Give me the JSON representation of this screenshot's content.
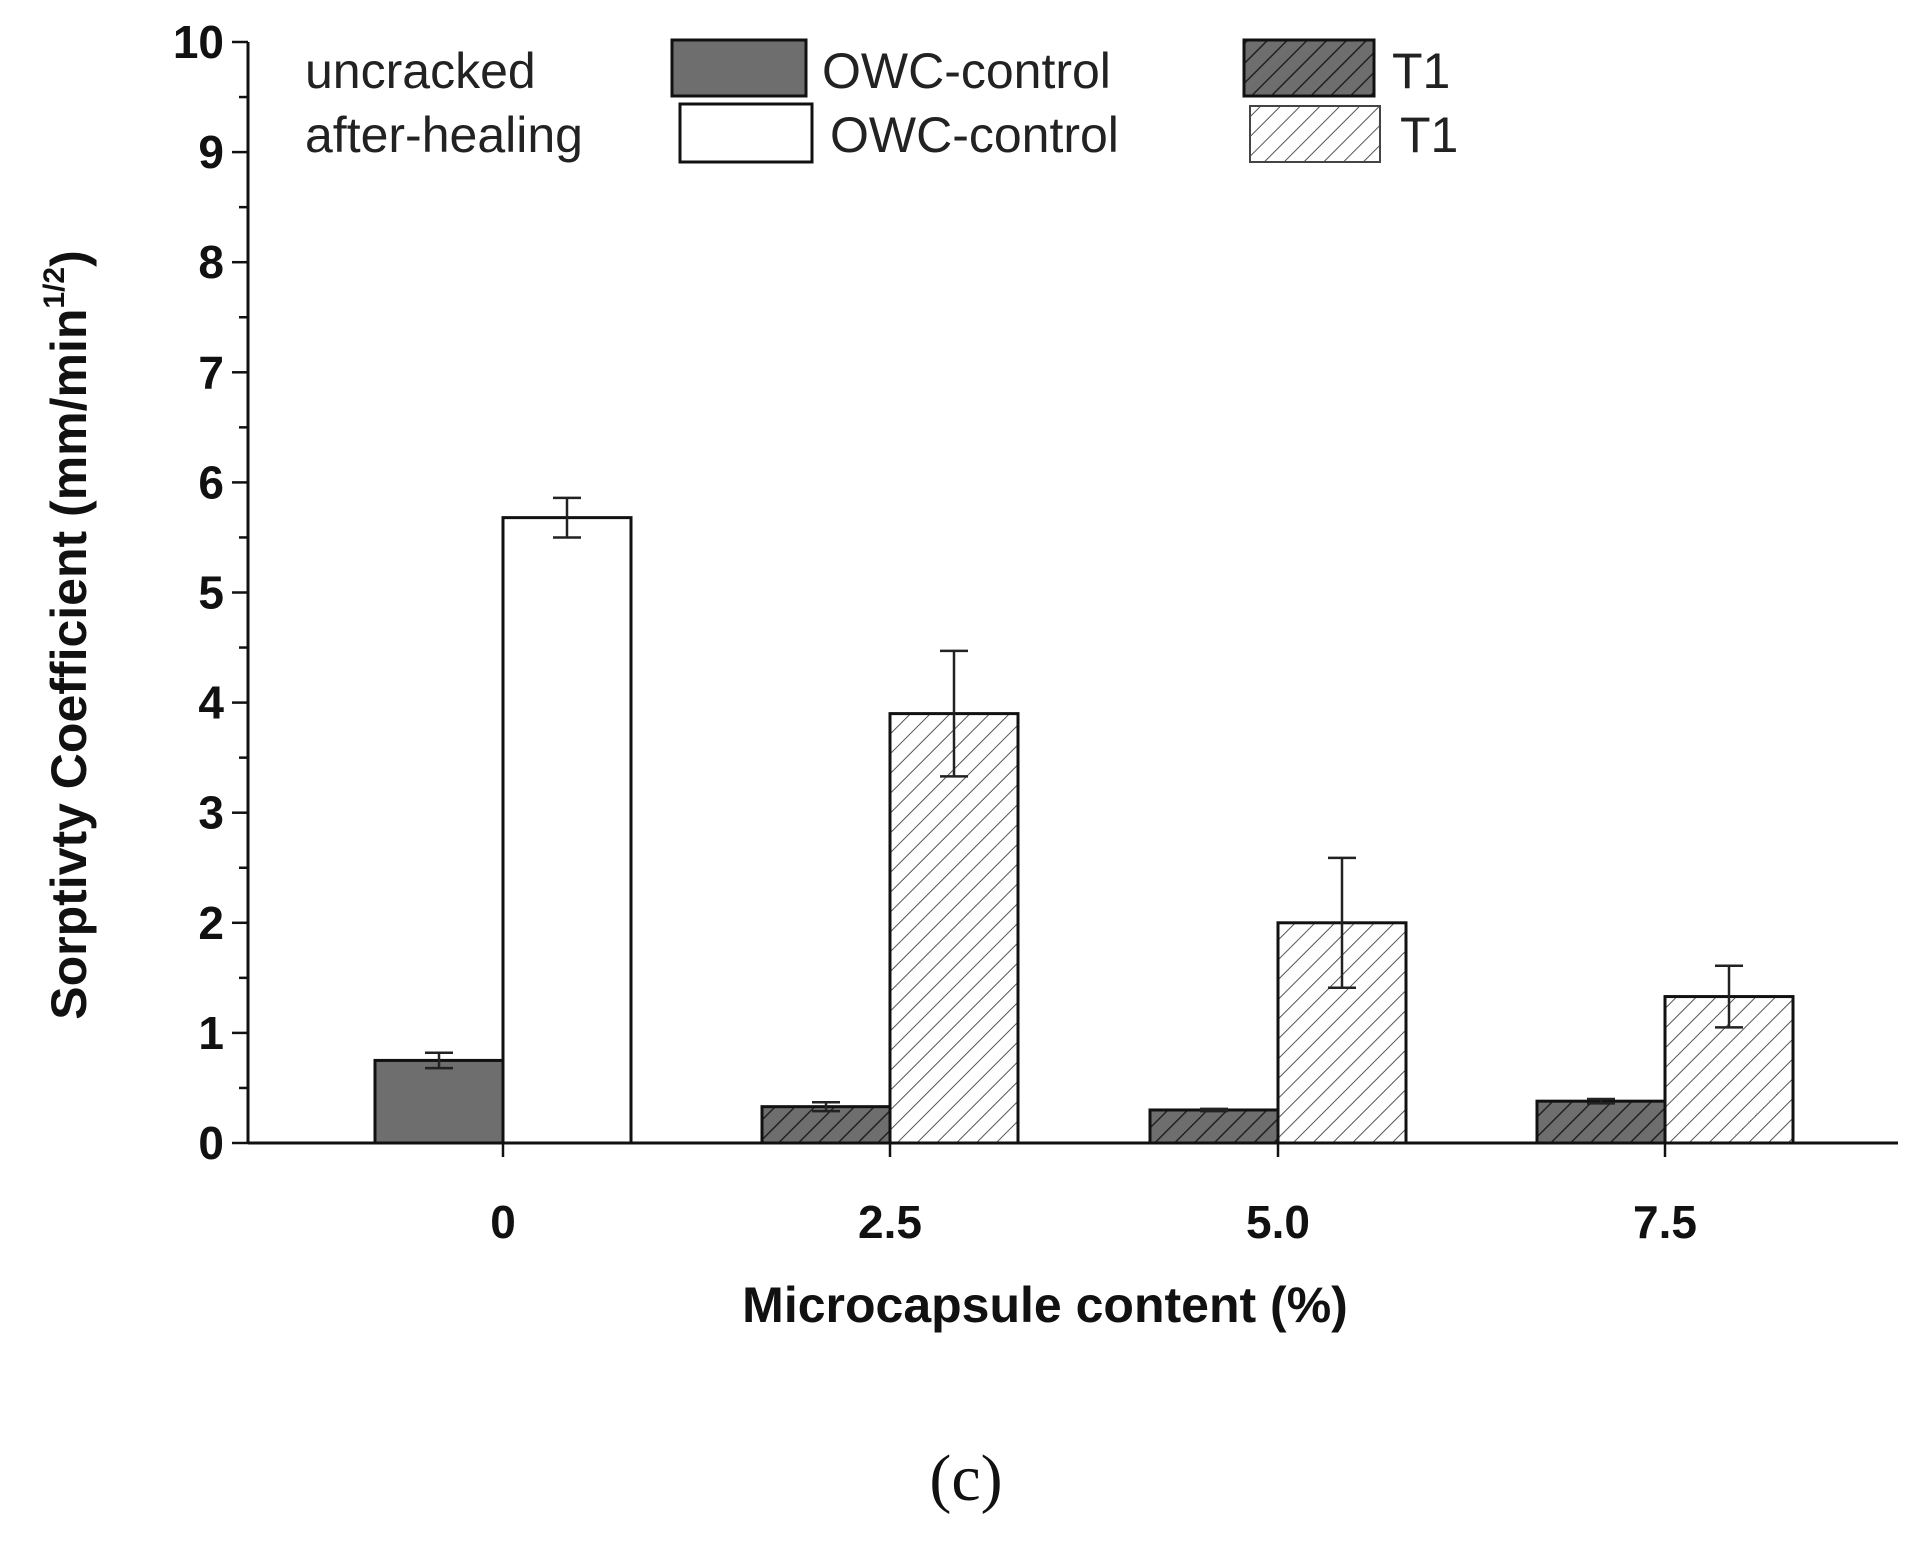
{
  "chart_data": {
    "type": "bar",
    "categories": [
      "0",
      "2.5",
      "5.0",
      "7.5"
    ],
    "series": [
      {
        "name": "uncracked",
        "values": [
          0.75,
          0.33,
          0.3,
          0.38
        ],
        "errors": [
          0.07,
          0.04,
          0.01,
          0.02
        ]
      },
      {
        "name": "after-healing",
        "values": [
          5.68,
          3.9,
          2.0,
          1.33
        ],
        "errors": [
          0.18,
          0.57,
          0.59,
          0.28
        ]
      }
    ],
    "xlabel": "Microcapsule content (%)",
    "ylabel_main": "Sorptivty Coefficient (mm/min",
    "ylabel_sup": "1/2",
    "ylabel_close": ")",
    "ylim": [
      0,
      10
    ],
    "yticks": [
      "0",
      "1",
      "2",
      "3",
      "4",
      "5",
      "6",
      "7",
      "8",
      "9",
      "10"
    ],
    "legend": {
      "position": "top-left",
      "rows": [
        {
          "label": "uncracked",
          "control": "OWC-control",
          "treated": "T1"
        },
        {
          "label": "after-healing",
          "control": "OWC-control",
          "treated": "T1"
        }
      ]
    },
    "fill_styles": {
      "uncracked_control": "solid-gray",
      "uncracked_t1": "dark-hatched",
      "healed_control": "white",
      "healed_t1": "light-hatched"
    },
    "colors": {
      "dark_fill": "#6e6e6e",
      "hatch_dark": "#222222",
      "hatch_light": "#555555",
      "outline": "#111111"
    }
  },
  "caption": "(c)"
}
